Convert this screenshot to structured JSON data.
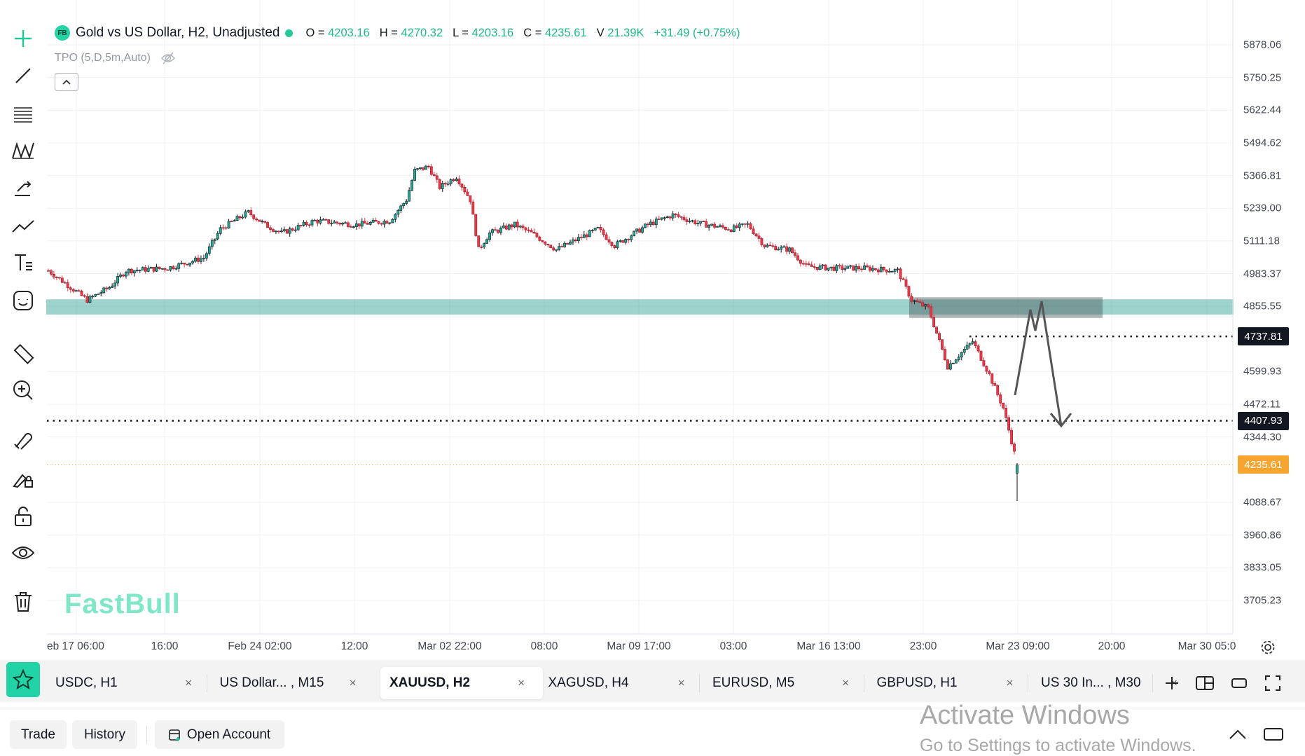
{
  "legend": {
    "logo": "FB",
    "title": "Gold vs US Dollar, H2, Unadjusted",
    "open_label": "O =",
    "open": "4203.16",
    "high_label": "H =",
    "high": "4270.32",
    "low_label": "L =",
    "low": "4203.16",
    "close_label": "C =",
    "close": "4235.61",
    "volume_label": "V",
    "volume": "21.39K",
    "change": "+31.49 (+0.75%)",
    "indicator": "TPO (5,D,5m,Auto)",
    "collapse_icon": "chevron-up-icon"
  },
  "watermark": "FastBull",
  "colors": {
    "up": "#22ab94",
    "down": "#f23645",
    "accent": "#22d3a5",
    "zone": "#2a9d8f",
    "last_price": "#f7a531"
  },
  "price_axis": [
    "5878.06",
    "5750.25",
    "5622.44",
    "5494.62",
    "5366.81",
    "5239.00",
    "5111.18",
    "4983.37",
    "4855.55",
    "4599.93",
    "4472.11",
    "4344.30",
    "4088.67",
    "3960.86",
    "3833.05",
    "3705.23"
  ],
  "price_badges": [
    {
      "value": "4737.81",
      "color": "#131722"
    },
    {
      "value": "4407.93",
      "color": "#131722"
    },
    {
      "value": "4235.61",
      "color": "#f7a531"
    }
  ],
  "time_axis": [
    "eb 17 06:00",
    "16:00",
    "Feb 24 02:00",
    "12:00",
    "Mar 02 22:00",
    "08:00",
    "Mar 09 17:00",
    "03:00",
    "Mar 16 13:00",
    "23:00",
    "Mar 23 09:00",
    "20:00",
    "Mar 30 05:0"
  ],
  "chart_data": {
    "type": "candlestick",
    "symbol": "XAUUSD",
    "timeframe": "H2",
    "ylim": [
      3705.23,
      5878.06
    ],
    "bar_count": 350,
    "close_path": [
      [
        0,
        4995
      ],
      [
        8,
        4930
      ],
      [
        14,
        4880
      ],
      [
        22,
        4930
      ],
      [
        28,
        4995
      ],
      [
        43,
        5005
      ],
      [
        56,
        5045
      ],
      [
        62,
        5158
      ],
      [
        72,
        5223
      ],
      [
        78,
        5175
      ],
      [
        84,
        5142
      ],
      [
        96,
        5190
      ],
      [
        111,
        5175
      ],
      [
        123,
        5190
      ],
      [
        129,
        5272
      ],
      [
        132,
        5386
      ],
      [
        137,
        5402
      ],
      [
        141,
        5321
      ],
      [
        147,
        5363
      ],
      [
        152,
        5272
      ],
      [
        155,
        5077
      ],
      [
        159,
        5142
      ],
      [
        168,
        5175
      ],
      [
        174,
        5142
      ],
      [
        183,
        5077
      ],
      [
        198,
        5158
      ],
      [
        204,
        5093
      ],
      [
        216,
        5175
      ],
      [
        225,
        5213
      ],
      [
        234,
        5181
      ],
      [
        246,
        5158
      ],
      [
        252,
        5175
      ],
      [
        258,
        5093
      ],
      [
        267,
        5077
      ],
      [
        273,
        5012
      ],
      [
        282,
        5005
      ],
      [
        294,
        5005
      ],
      [
        306,
        4995
      ],
      [
        311,
        4880
      ],
      [
        317,
        4848
      ],
      [
        321,
        4718
      ],
      [
        324,
        4620
      ],
      [
        330,
        4686
      ],
      [
        333,
        4718
      ],
      [
        339,
        4588
      ],
      [
        344,
        4458
      ],
      [
        347,
        4328
      ],
      [
        349,
        4235.61
      ]
    ],
    "zones": [
      {
        "name": "support-zone",
        "from": 4826,
        "to": 4880
      },
      {
        "name": "resistance-box",
        "from": 4810,
        "to": 4891
      }
    ],
    "hlines": [
      4737.81,
      4407.93,
      4235.61
    ]
  },
  "tabs": [
    {
      "label": "USDC, H1"
    },
    {
      "label": "US Dollar... , M15"
    },
    {
      "label": "XAUUSD, H2",
      "active": true
    },
    {
      "label": "XAGUSD, H4"
    },
    {
      "label": "EURUSD, M5"
    },
    {
      "label": "GBPUSD, H1"
    },
    {
      "label": "US 30 In... , M30"
    }
  ],
  "close_glyph": "×",
  "bottom": {
    "trade": "Trade",
    "history": "History",
    "open_account": "Open Account"
  },
  "os_watermark": {
    "line1": "Activate Windows",
    "line2": "Go to Settings to activate Windows."
  }
}
